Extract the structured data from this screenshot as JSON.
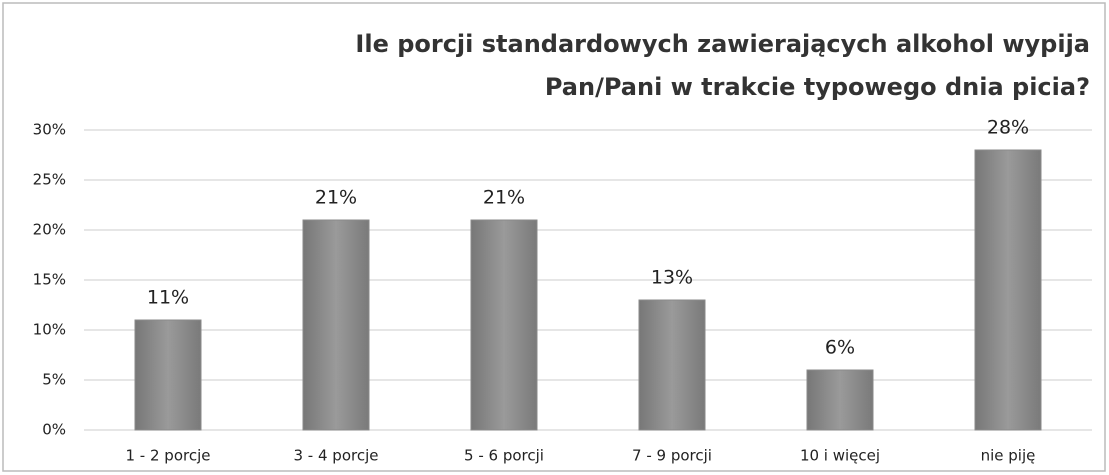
{
  "chart_data": {
    "type": "bar",
    "title": [
      "Ile porcji standardowych zawierających alkohol wypija",
      "Pan/Pani  w trakcie typowego dnia picia?"
    ],
    "categories": [
      "1 - 2 porcje",
      "3 - 4 porcje",
      "5 - 6 porcji",
      "7 - 9 porcji",
      "10 i więcej",
      "nie piję"
    ],
    "values": [
      11,
      21,
      21,
      13,
      6,
      28
    ],
    "value_labels": [
      "11%",
      "21%",
      "21%",
      "13%",
      "6%",
      "28%"
    ],
    "color": "#8a8a8a",
    "ylim": [
      0,
      30
    ],
    "yticks": [
      {
        "value": 0,
        "label": "0%"
      },
      {
        "value": 5,
        "label": "5%"
      },
      {
        "value": 10,
        "label": "10%"
      },
      {
        "value": 15,
        "label": "15%"
      },
      {
        "value": 20,
        "label": "20%"
      },
      {
        "value": 25,
        "label": "25%"
      },
      {
        "value": 30,
        "label": "30%"
      }
    ],
    "grid": true
  }
}
